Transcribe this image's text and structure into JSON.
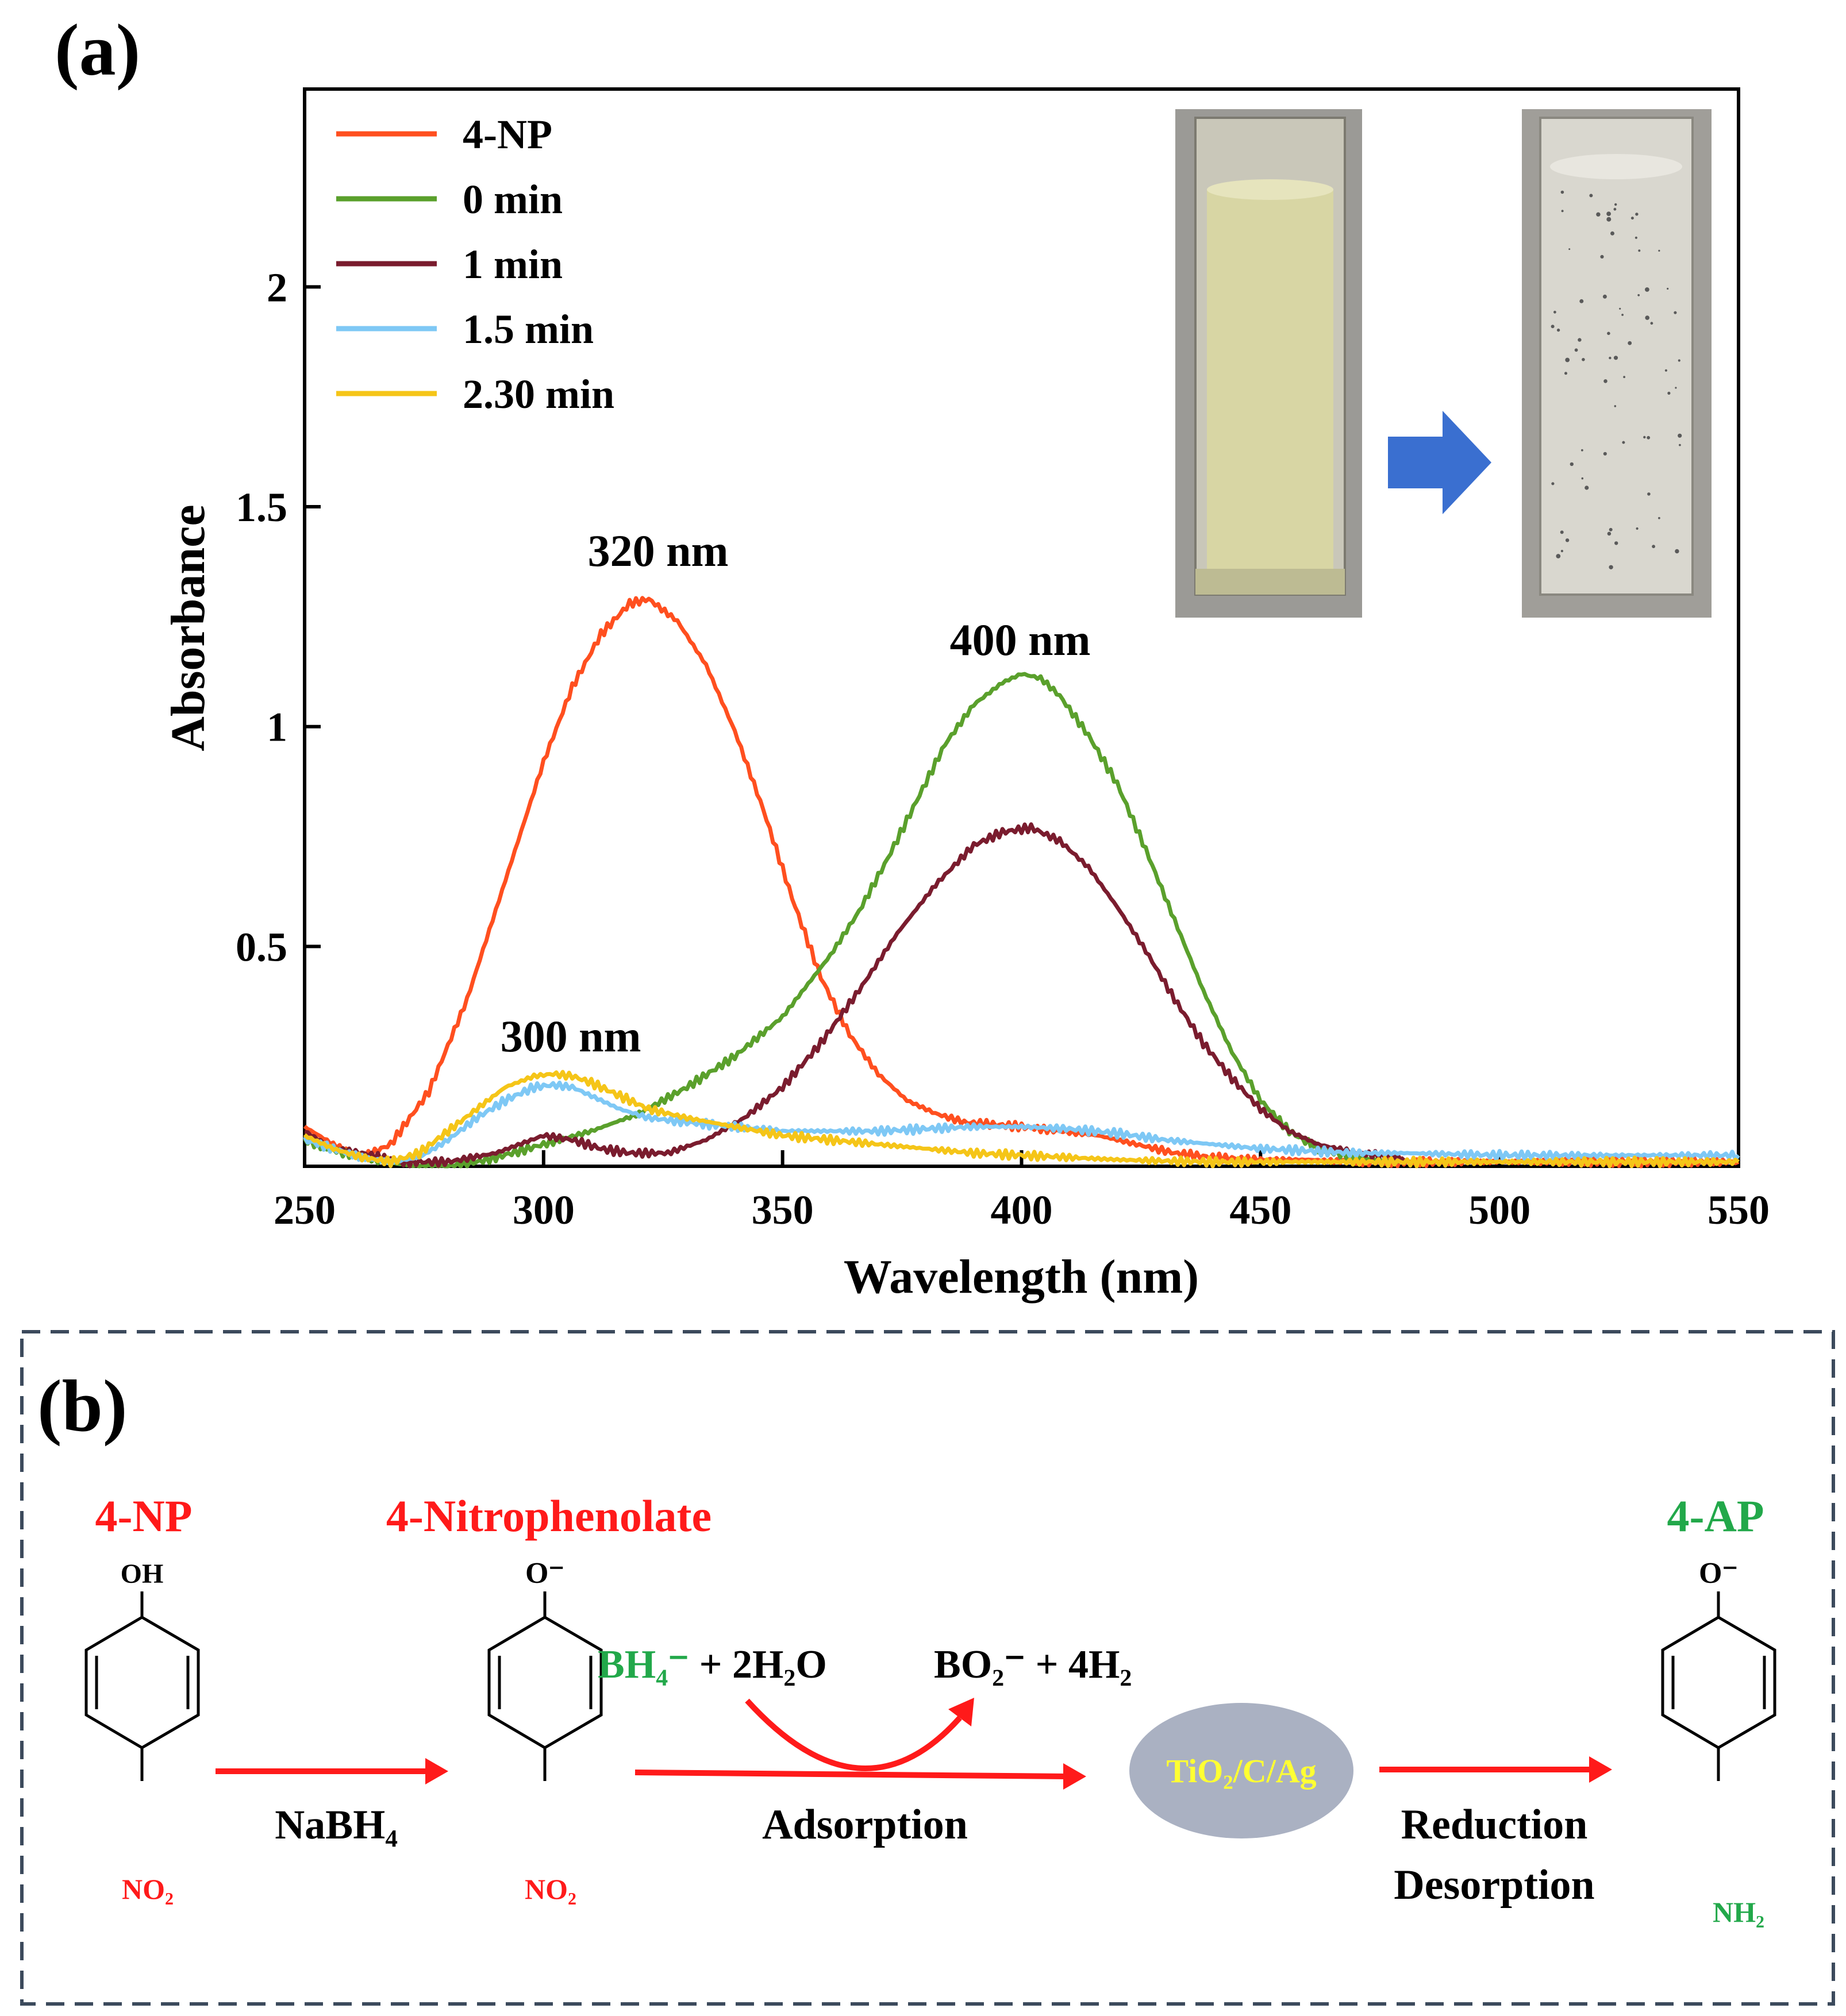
{
  "panel_a": {
    "label": "(a)",
    "annotations": [
      "320 nm",
      "400 nm",
      "300 nm"
    ]
  },
  "chart_data": {
    "type": "line",
    "xlabel": "Wavelength (nm)",
    "ylabel": "Absorbance",
    "xlim": [
      250,
      550
    ],
    "ylim": [
      0,
      2.45
    ],
    "xticks": [
      250,
      300,
      350,
      400,
      450,
      500,
      550
    ],
    "yticks": [
      0.5,
      1,
      1.5,
      2
    ],
    "ytick_labels": [
      "0.5",
      "1",
      "1.5",
      "2"
    ],
    "legend_position": "top-left",
    "series": [
      {
        "name": "4-NP",
        "color": "#ff4f1f",
        "x": [
          250,
          256,
          262,
          268,
          276,
          284,
          292,
          300,
          306,
          312,
          318,
          322,
          328,
          334,
          340,
          346,
          352,
          358,
          364,
          370,
          376,
          382,
          388,
          394,
          400,
          408,
          416,
          424,
          432,
          440,
          450,
          460,
          470,
          480,
          500,
          525,
          550
        ],
        "y": [
          0.09,
          0.05,
          0.02,
          0.05,
          0.17,
          0.38,
          0.65,
          0.92,
          1.09,
          1.21,
          1.28,
          1.29,
          1.24,
          1.14,
          0.99,
          0.81,
          0.61,
          0.43,
          0.3,
          0.21,
          0.15,
          0.12,
          0.1,
          0.095,
          0.09,
          0.08,
          0.07,
          0.05,
          0.03,
          0.02,
          0.015,
          0.015,
          0.01,
          0.01,
          0.01,
          0.01,
          0.01
        ]
      },
      {
        "name": "0 min",
        "color": "#5aa02c",
        "x": [
          250,
          258,
          266,
          274,
          282,
          290,
          300,
          310,
          320,
          330,
          340,
          350,
          360,
          366,
          372,
          378,
          384,
          390,
          396,
          400,
          404,
          408,
          414,
          420,
          426,
          432,
          438,
          444,
          450,
          456,
          462,
          470,
          480
        ],
        "y": [
          0.06,
          0.03,
          0.01,
          0.0,
          0.0,
          0.02,
          0.05,
          0.08,
          0.12,
          0.18,
          0.25,
          0.34,
          0.48,
          0.58,
          0.7,
          0.83,
          0.96,
          1.05,
          1.1,
          1.12,
          1.11,
          1.07,
          0.98,
          0.87,
          0.72,
          0.56,
          0.4,
          0.26,
          0.15,
          0.08,
          0.04,
          0.02,
          0.01
        ]
      },
      {
        "name": "1 min",
        "color": "#7a1c2e",
        "x": [
          250,
          256,
          262,
          270,
          280,
          290,
          300,
          306,
          312,
          318,
          326,
          334,
          342,
          350,
          358,
          366,
          374,
          382,
          390,
          396,
          402,
          408,
          414,
          420,
          426,
          432,
          438,
          444,
          450,
          456,
          462,
          470,
          480
        ],
        "y": [
          0.08,
          0.04,
          0.03,
          0.01,
          0.01,
          0.03,
          0.07,
          0.06,
          0.04,
          0.03,
          0.03,
          0.06,
          0.11,
          0.18,
          0.28,
          0.4,
          0.53,
          0.64,
          0.73,
          0.76,
          0.77,
          0.74,
          0.68,
          0.59,
          0.49,
          0.38,
          0.28,
          0.2,
          0.13,
          0.08,
          0.05,
          0.03,
          0.02
        ]
      },
      {
        "name": "1.5 min",
        "color": "#7ec8f5",
        "x": [
          250,
          256,
          262,
          268,
          274,
          280,
          286,
          292,
          298,
          302,
          306,
          310,
          316,
          322,
          330,
          340,
          350,
          360,
          370,
          380,
          390,
          400,
          410,
          420,
          430,
          440,
          450,
          460,
          470,
          480,
          500,
          525,
          550
        ],
        "y": [
          0.06,
          0.04,
          0.02,
          0.01,
          0.02,
          0.06,
          0.11,
          0.15,
          0.18,
          0.185,
          0.18,
          0.16,
          0.13,
          0.11,
          0.1,
          0.09,
          0.08,
          0.08,
          0.08,
          0.085,
          0.09,
          0.09,
          0.085,
          0.075,
          0.06,
          0.05,
          0.04,
          0.035,
          0.03,
          0.03,
          0.025,
          0.025,
          0.025
        ]
      },
      {
        "name": "2.30 min",
        "color": "#f5c518",
        "x": [
          250,
          256,
          262,
          268,
          274,
          280,
          286,
          292,
          298,
          302,
          306,
          310,
          316,
          322,
          330,
          340,
          350,
          360,
          370,
          380,
          390,
          400,
          410,
          420,
          430,
          440,
          450,
          470,
          500,
          525,
          550
        ],
        "y": [
          0.07,
          0.04,
          0.02,
          0.01,
          0.03,
          0.08,
          0.13,
          0.18,
          0.205,
          0.21,
          0.205,
          0.19,
          0.16,
          0.13,
          0.11,
          0.09,
          0.07,
          0.06,
          0.05,
          0.04,
          0.03,
          0.025,
          0.02,
          0.015,
          0.012,
          0.01,
          0.01,
          0.01,
          0.01,
          0.01,
          0.01
        ]
      }
    ]
  },
  "panel_b": {
    "label": "(b)",
    "title_4np": "4-NP",
    "title_nitrophenolate": "4-Nitrophenolate",
    "title_4ap": "4-AP",
    "oh_label": "OH",
    "o_minus_1": "O⁻",
    "o_minus_2": "O⁻",
    "no2_1": "NO₂",
    "no2_2": "NO₂",
    "nh2": "NH₂",
    "bh4": "BH₄⁻",
    "plus_water": " + 2H₂O",
    "bo2_products": "BO₂⁻ + 4H₂",
    "nabh4": "NaBH₄",
    "adsorption": "Adsorption",
    "catalyst": "TiO₂/C/Ag",
    "reduction": "Reduction",
    "desorption": "Desorption"
  },
  "colors": {
    "red": "#ff1a1a",
    "green": "#22a84a",
    "catalyst_fill": "#aab1c2",
    "catalyst_text": "#ffff33",
    "frame_dash": "#3c4a5c",
    "inset_arrow": "#3a6fd0",
    "yellow_solution": "#d8d6a4",
    "clear_solution": "#d9d7cf"
  }
}
